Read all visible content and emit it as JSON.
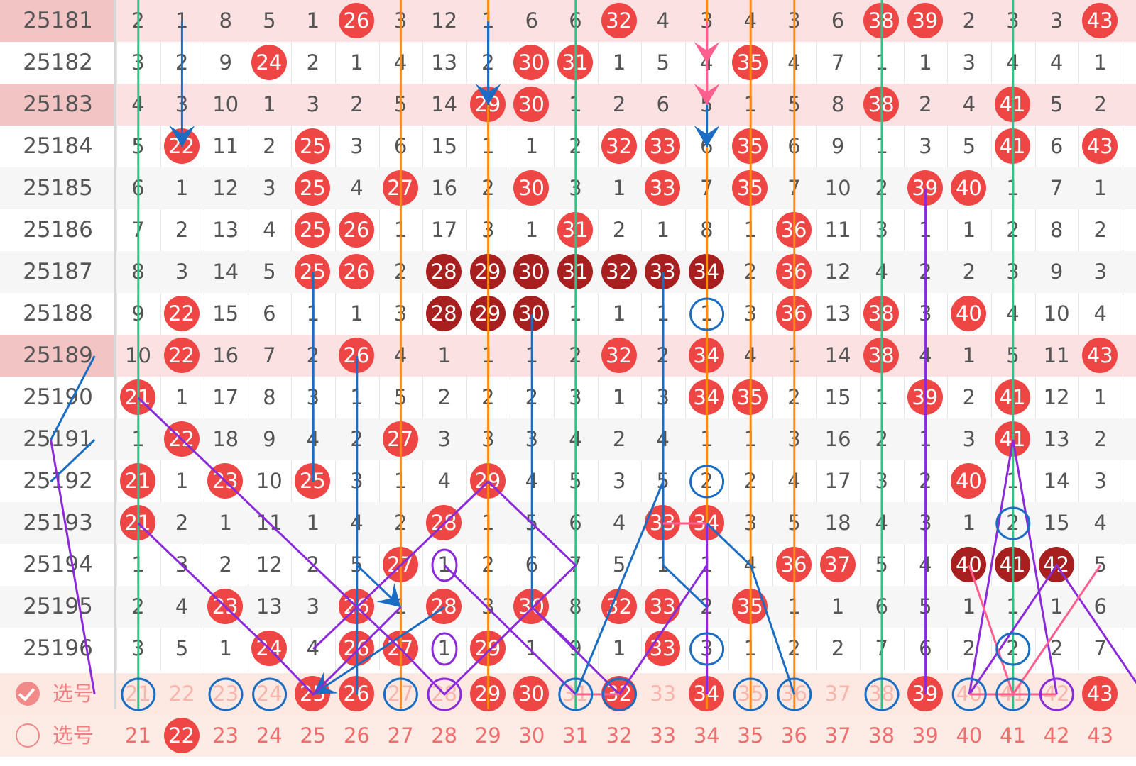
{
  "start_number": 21,
  "issues": [
    {
      "issue": "25181",
      "pink": true,
      "cells": [
        "2",
        "1",
        "8",
        "5",
        "1",
        "26",
        "3",
        "12",
        "1",
        "6",
        "6",
        "32",
        "4",
        "3",
        "4",
        "3",
        "6",
        "38",
        "39",
        "2",
        "3",
        "3",
        "43"
      ],
      "balls": {
        "6": "r",
        "12": "r",
        "18": "r",
        "19": "r",
        "23": "r"
      }
    },
    {
      "issue": "25182",
      "pink": false,
      "cells": [
        "3",
        "2",
        "9",
        "24",
        "2",
        "1",
        "4",
        "13",
        "2",
        "30",
        "31",
        "1",
        "5",
        "4",
        "35",
        "4",
        "7",
        "1",
        "1",
        "3",
        "4",
        "4",
        "1"
      ],
      "balls": {
        "4": "r",
        "10": "r",
        "11": "r",
        "15": "r"
      }
    },
    {
      "issue": "25183",
      "pink": true,
      "cells": [
        "4",
        "3",
        "10",
        "1",
        "3",
        "2",
        "5",
        "14",
        "29",
        "30",
        "1",
        "2",
        "6",
        "5",
        "1",
        "5",
        "8",
        "38",
        "2",
        "4",
        "41",
        "5",
        "2"
      ],
      "balls": {
        "9": "r",
        "10": "r",
        "18": "r",
        "21": "r"
      }
    },
    {
      "issue": "25184",
      "pink": false,
      "cells": [
        "5",
        "22",
        "11",
        "2",
        "25",
        "3",
        "6",
        "15",
        "1",
        "1",
        "2",
        "32",
        "33",
        "6",
        "35",
        "6",
        "9",
        "1",
        "3",
        "5",
        "41",
        "6",
        "43"
      ],
      "balls": {
        "2": "r",
        "5": "r",
        "12": "r",
        "13": "r",
        "15": "r",
        "21": "r",
        "23": "r"
      }
    },
    {
      "issue": "25185",
      "pink": false,
      "cells": [
        "6",
        "1",
        "12",
        "3",
        "25",
        "4",
        "27",
        "16",
        "2",
        "30",
        "3",
        "1",
        "33",
        "7",
        "35",
        "7",
        "10",
        "2",
        "39",
        "40",
        "1",
        "7",
        "1"
      ],
      "balls": {
        "5": "r",
        "7": "r",
        "10": "r",
        "13": "r",
        "15": "r",
        "19": "r",
        "20": "r"
      }
    },
    {
      "issue": "25186",
      "pink": false,
      "cells": [
        "7",
        "2",
        "13",
        "4",
        "25",
        "26",
        "1",
        "17",
        "3",
        "1",
        "31",
        "2",
        "1",
        "8",
        "1",
        "36",
        "11",
        "3",
        "1",
        "1",
        "2",
        "8",
        "2"
      ],
      "balls": {
        "5": "r",
        "6": "r",
        "11": "r",
        "16": "r"
      }
    },
    {
      "issue": "25187",
      "pink": false,
      "cells": [
        "8",
        "3",
        "14",
        "5",
        "25",
        "26",
        "2",
        "28",
        "29",
        "30",
        "31",
        "32",
        "33",
        "34",
        "2",
        "36",
        "12",
        "4",
        "2",
        "2",
        "3",
        "9",
        "3"
      ],
      "balls": {
        "5": "r",
        "6": "r",
        "8": "d",
        "9": "d",
        "10": "d",
        "11": "d",
        "12": "d",
        "13": "d",
        "14": "d",
        "16": "r"
      }
    },
    {
      "issue": "25188",
      "pink": false,
      "cells": [
        "9",
        "22",
        "15",
        "6",
        "1",
        "1",
        "3",
        "28",
        "29",
        "30",
        "1",
        "1",
        "1",
        "1",
        "3",
        "36",
        "13",
        "38",
        "3",
        "40",
        "4",
        "10",
        "4"
      ],
      "balls": {
        "2": "r",
        "8": "d",
        "9": "d",
        "10": "d",
        "16": "r",
        "18": "r",
        "20": "r"
      }
    },
    {
      "issue": "25189",
      "pink": true,
      "cells": [
        "10",
        "22",
        "16",
        "7",
        "2",
        "26",
        "4",
        "1",
        "1",
        "1",
        "2",
        "32",
        "2",
        "34",
        "4",
        "1",
        "14",
        "38",
        "4",
        "1",
        "5",
        "11",
        "43"
      ],
      "balls": {
        "2": "r",
        "6": "r",
        "12": "r",
        "14": "r",
        "18": "r",
        "23": "r"
      }
    },
    {
      "issue": "25190",
      "pink": false,
      "cells": [
        "21",
        "1",
        "17",
        "8",
        "3",
        "1",
        "5",
        "2",
        "2",
        "2",
        "3",
        "1",
        "3",
        "34",
        "35",
        "2",
        "15",
        "1",
        "39",
        "2",
        "41",
        "12",
        "1"
      ],
      "balls": {
        "1": "r",
        "14": "r",
        "15": "r",
        "19": "r",
        "21": "r"
      }
    },
    {
      "issue": "25191",
      "pink": false,
      "cells": [
        "1",
        "22",
        "18",
        "9",
        "4",
        "2",
        "27",
        "3",
        "3",
        "3",
        "4",
        "2",
        "4",
        "1",
        "1",
        "3",
        "16",
        "2",
        "1",
        "3",
        "41",
        "13",
        "2"
      ],
      "balls": {
        "2": "r",
        "7": "r",
        "21": "r"
      }
    },
    {
      "issue": "25192",
      "pink": false,
      "cells": [
        "21",
        "1",
        "23",
        "10",
        "25",
        "3",
        "1",
        "4",
        "29",
        "4",
        "5",
        "3",
        "5",
        "2",
        "2",
        "4",
        "17",
        "3",
        "2",
        "40",
        "1",
        "14",
        "3"
      ],
      "balls": {
        "1": "r",
        "3": "r",
        "5": "r",
        "9": "r",
        "20": "r"
      }
    },
    {
      "issue": "25193",
      "pink": false,
      "cells": [
        "21",
        "2",
        "1",
        "11",
        "1",
        "4",
        "2",
        "28",
        "1",
        "5",
        "6",
        "4",
        "33",
        "34",
        "3",
        "5",
        "18",
        "4",
        "3",
        "1",
        "2",
        "15",
        "4"
      ],
      "balls": {
        "1": "r",
        "8": "r",
        "13": "r",
        "14": "r"
      }
    },
    {
      "issue": "25194",
      "pink": false,
      "cells": [
        "1",
        "3",
        "2",
        "12",
        "2",
        "5",
        "27",
        "1",
        "2",
        "6",
        "7",
        "5",
        "1",
        "1",
        "4",
        "36",
        "37",
        "5",
        "4",
        "40",
        "41",
        "42",
        "5"
      ],
      "balls": {
        "7": "r",
        "16": "r",
        "17": "r",
        "20": "d",
        "21": "d",
        "22": "d"
      }
    },
    {
      "issue": "25195",
      "pink": false,
      "cells": [
        "2",
        "4",
        "23",
        "13",
        "3",
        "26",
        "1",
        "28",
        "3",
        "30",
        "8",
        "32",
        "33",
        "2",
        "35",
        "1",
        "1",
        "6",
        "5",
        "1",
        "1",
        "1",
        "6"
      ],
      "balls": {
        "3": "r",
        "6": "r",
        "8": "r",
        "10": "r",
        "12": "r",
        "13": "r",
        "15": "r"
      }
    },
    {
      "issue": "25196",
      "pink": false,
      "cells": [
        "3",
        "5",
        "1",
        "24",
        "4",
        "26",
        "27",
        "1",
        "29",
        "1",
        "9",
        "1",
        "33",
        "3",
        "1",
        "2",
        "2",
        "7",
        "6",
        "2",
        "2",
        "2",
        "7"
      ],
      "balls": {
        "4": "r",
        "6": "r",
        "7": "r",
        "9": "r",
        "13": "r"
      }
    }
  ],
  "select_row": {
    "label": "选号",
    "checked": true,
    "numbers": [
      "21",
      "22",
      "23",
      "24",
      "25",
      "26",
      "27",
      "28",
      "29",
      "30",
      "31",
      "32",
      "33",
      "34",
      "35",
      "36",
      "37",
      "38",
      "39",
      "40",
      "41",
      "42",
      "43"
    ],
    "red": [
      "25",
      "26",
      "29",
      "30",
      "32",
      "34",
      "39",
      "43"
    ]
  },
  "legend_row": {
    "label": "选号",
    "checked": false,
    "numbers": [
      "21",
      "22",
      "23",
      "24",
      "25",
      "26",
      "27",
      "28",
      "29",
      "30",
      "31",
      "32",
      "33",
      "34",
      "35",
      "36",
      "37",
      "38",
      "39",
      "40",
      "41",
      "42",
      "43"
    ],
    "red": [
      "22"
    ]
  },
  "colors": {
    "ball_red": "#ee4545",
    "ball_dark": "#a81f1f",
    "green_line": "#2fc38a",
    "orange_line": "#ff8a12",
    "blue_line": "#1a6dc2",
    "purple_line": "#8b2ad8",
    "pink_line": "#ff5f8f"
  },
  "vertical_lines": [
    {
      "col": 1,
      "color": "green"
    },
    {
      "col": 7,
      "color": "orange"
    },
    {
      "col": 9,
      "color": "orange"
    },
    {
      "col": 11,
      "color": "green"
    },
    {
      "col": 14,
      "color": "orange"
    },
    {
      "col": 15,
      "color": "orange"
    },
    {
      "col": 16,
      "color": "orange"
    },
    {
      "col": 18,
      "color": "green"
    },
    {
      "col": 21,
      "color": "green"
    }
  ],
  "circles": [
    {
      "row": 7,
      "col": 14,
      "color": "blue"
    },
    {
      "row": 11,
      "col": 14,
      "color": "blue"
    },
    {
      "row": 12,
      "col": 21,
      "color": "blue"
    },
    {
      "row": 13,
      "col": 8,
      "color": "purple",
      "oval": true
    },
    {
      "row": 15,
      "col": 8,
      "color": "purple",
      "oval": true
    },
    {
      "row": 15,
      "col": 14,
      "color": "blue"
    },
    {
      "row": 15,
      "col": 21,
      "color": "blue"
    },
    {
      "row": 16,
      "col": 1,
      "color": "blue"
    },
    {
      "row": 16,
      "col": 3,
      "color": "blue"
    },
    {
      "row": 16,
      "col": 4,
      "color": "blue"
    },
    {
      "row": 16,
      "col": 7,
      "color": "blue"
    },
    {
      "row": 16,
      "col": 8,
      "color": "purple"
    },
    {
      "row": 16,
      "col": 11,
      "color": "blue"
    },
    {
      "row": 16,
      "col": 12,
      "color": "blue"
    },
    {
      "row": 16,
      "col": 15,
      "color": "blue"
    },
    {
      "row": 16,
      "col": 16,
      "color": "blue"
    },
    {
      "row": 16,
      "col": 18,
      "color": "blue"
    },
    {
      "row": 16,
      "col": 20,
      "color": "blue"
    },
    {
      "row": 16,
      "col": 21,
      "color": "blue"
    },
    {
      "row": 16,
      "col": 22,
      "color": "purple"
    }
  ],
  "trend_lines": [
    {
      "color": "blue",
      "pts": [
        [
          0,
          2
        ],
        [
          3,
          2
        ]
      ],
      "arrow": true
    },
    {
      "color": "blue",
      "pts": [
        [
          0,
          9
        ],
        [
          1,
          9
        ]
      ]
    },
    {
      "color": "blue",
      "pts": [
        [
          0,
          9
        ],
        [
          2,
          9
        ]
      ],
      "arrow": true
    },
    {
      "color": "blue",
      "pts": [
        [
          0,
          14
        ],
        [
          3,
          14
        ]
      ],
      "arrow": true
    },
    {
      "color": "pink",
      "pts": [
        [
          0,
          14
        ],
        [
          2,
          14
        ]
      ],
      "arrow": true
    },
    {
      "color": "pink",
      "pts": [
        [
          0,
          14
        ],
        [
          1,
          14
        ]
      ],
      "arrow": true
    },
    {
      "color": "blue",
      "pts": [
        [
          6,
          5
        ],
        [
          11,
          5
        ]
      ]
    },
    {
      "color": "blue",
      "pts": [
        [
          6,
          13
        ],
        [
          12,
          13
        ]
      ]
    },
    {
      "color": "blue",
      "pts": [
        [
          8,
          6
        ],
        [
          16,
          6
        ]
      ]
    },
    {
      "color": "blue",
      "pts": [
        [
          7,
          10
        ],
        [
          14,
          10
        ]
      ]
    },
    {
      "color": "blue",
      "pts": [
        [
          8,
          0
        ],
        [
          10,
          -1
        ]
      ]
    },
    {
      "color": "blue",
      "pts": [
        [
          10,
          0
        ],
        [
          11,
          -1
        ]
      ]
    },
    {
      "color": "blue",
      "pts": [
        [
          14,
          8
        ],
        [
          16,
          5
        ]
      ],
      "arrow": true
    },
    {
      "color": "blue",
      "pts": [
        [
          13,
          6
        ],
        [
          14,
          7
        ]
      ],
      "arrow": true
    },
    {
      "color": "purple",
      "pts": [
        [
          9,
          1
        ],
        [
          15,
          7
        ],
        [
          16,
          8
        ],
        [
          13,
          11
        ],
        [
          11,
          9
        ],
        [
          13,
          7
        ],
        [
          15,
          5
        ]
      ]
    },
    {
      "color": "purple",
      "pts": [
        [
          12,
          1
        ],
        [
          14,
          3
        ],
        [
          15,
          4
        ],
        [
          16,
          5
        ],
        [
          14,
          7
        ]
      ]
    },
    {
      "color": "purple",
      "pts": [
        [
          10,
          -1
        ],
        [
          16,
          0
        ]
      ]
    },
    {
      "color": "purple",
      "pts": [
        [
          13,
          8
        ],
        [
          16,
          11
        ]
      ]
    },
    {
      "color": "purple",
      "pts": [
        [
          16,
          12
        ],
        [
          13,
          14
        ]
      ]
    },
    {
      "color": "purple",
      "pts": [
        [
          16,
          12
        ],
        [
          14,
          10
        ],
        [
          15,
          11
        ]
      ]
    },
    {
      "color": "purple",
      "pts": [
        [
          16,
          14
        ],
        [
          12,
          14
        ]
      ]
    },
    {
      "color": "blue",
      "pts": [
        [
          16,
          11
        ],
        [
          11,
          13
        ],
        [
          13,
          13
        ],
        [
          14,
          14
        ]
      ]
    },
    {
      "color": "blue",
      "pts": [
        [
          12,
          14
        ],
        [
          13,
          15
        ],
        [
          16,
          16
        ]
      ]
    },
    {
      "color": "purple",
      "pts": [
        [
          16,
          19
        ],
        [
          4,
          19
        ]
      ]
    },
    {
      "color": "purple",
      "pts": [
        [
          16,
          20
        ],
        [
          10,
          21
        ],
        [
          16,
          22
        ]
      ]
    },
    {
      "color": "purple",
      "pts": [
        [
          16,
          20
        ],
        [
          13,
          22
        ],
        [
          16,
          24
        ]
      ]
    },
    {
      "color": "pink",
      "pts": [
        [
          16,
          20
        ],
        [
          16,
          22
        ]
      ]
    },
    {
      "color": "pink",
      "pts": [
        [
          13,
          20
        ],
        [
          16,
          21
        ],
        [
          13,
          23
        ]
      ]
    },
    {
      "color": "pink",
      "pts": [
        [
          12,
          13
        ],
        [
          12,
          14
        ]
      ]
    },
    {
      "color": "pink",
      "pts": [
        [
          16,
          11
        ],
        [
          16,
          12
        ]
      ]
    }
  ]
}
